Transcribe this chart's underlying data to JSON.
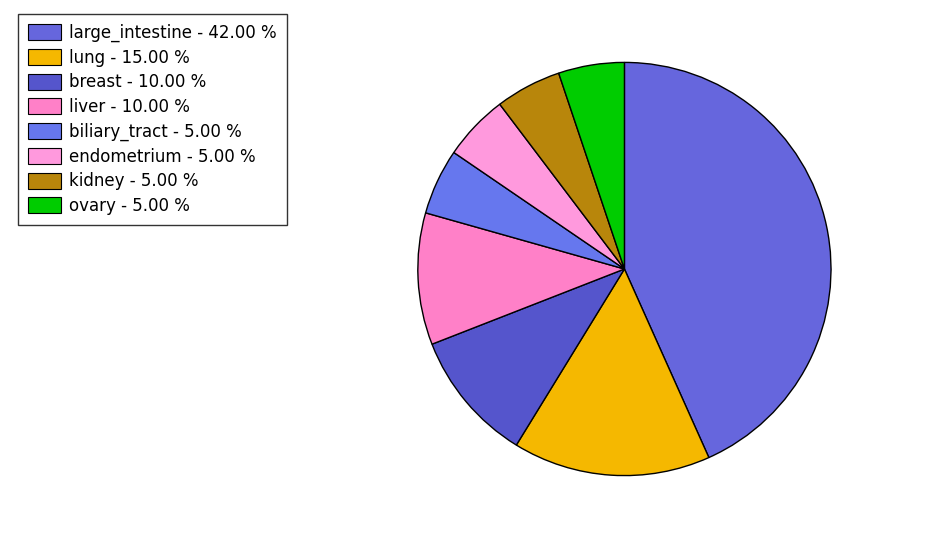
{
  "labels": [
    "large_intestine",
    "lung",
    "breast",
    "liver",
    "biliary_tract",
    "endometrium",
    "kidney",
    "ovary"
  ],
  "values": [
    42.0,
    15.0,
    10.0,
    10.0,
    5.0,
    5.0,
    5.0,
    5.0
  ],
  "colors": [
    "#6666dd",
    "#f5b800",
    "#5555cc",
    "#ff80c8",
    "#6677ee",
    "#ff99dd",
    "#b8860b",
    "#00cc00"
  ],
  "legend_labels": [
    "large_intestine - 42.00 %",
    "lung - 15.00 %",
    "breast - 10.00 %",
    "liver - 10.00 %",
    "biliary_tract - 5.00 %",
    "endometrium - 5.00 %",
    "kidney - 5.00 %",
    "ovary - 5.00 %"
  ],
  "startangle": 90,
  "figsize": [
    9.39,
    5.38
  ],
  "dpi": 100,
  "legend_fontsize": 12
}
